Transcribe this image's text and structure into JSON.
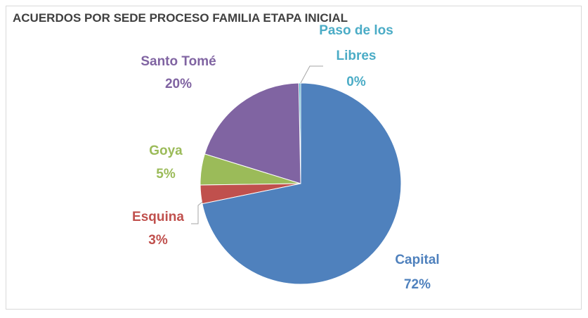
{
  "chart_data": {
    "type": "pie",
    "title": "ACUERDOS POR SEDE PROCESO FAMILIA ETAPA INICIAL",
    "categories": [
      "Capital",
      "Esquina",
      "Goya",
      "Santo Tomé",
      "Paso de los Libres"
    ],
    "values": [
      72,
      3,
      5,
      20,
      0.3
    ],
    "value_labels": [
      "72%",
      "3%",
      "5%",
      "20%",
      "0%"
    ],
    "colors": [
      "#4f81bd",
      "#c0504d",
      "#9bbb59",
      "#8064a2",
      "#4bacc6"
    ]
  }
}
